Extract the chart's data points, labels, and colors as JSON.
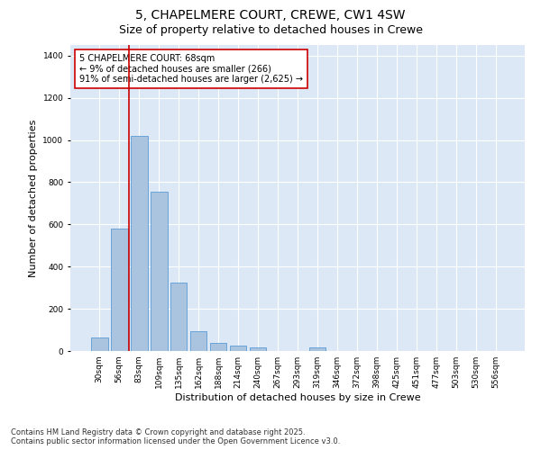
{
  "title_line1": "5, CHAPELMERE COURT, CREWE, CW1 4SW",
  "title_line2": "Size of property relative to detached houses in Crewe",
  "xlabel": "Distribution of detached houses by size in Crewe",
  "ylabel": "Number of detached properties",
  "categories": [
    "30sqm",
    "56sqm",
    "83sqm",
    "109sqm",
    "135sqm",
    "162sqm",
    "188sqm",
    "214sqm",
    "240sqm",
    "267sqm",
    "293sqm",
    "319sqm",
    "346sqm",
    "372sqm",
    "398sqm",
    "425sqm",
    "451sqm",
    "477sqm",
    "503sqm",
    "530sqm",
    "556sqm"
  ],
  "values": [
    65,
    580,
    1020,
    755,
    325,
    95,
    38,
    25,
    15,
    0,
    0,
    18,
    0,
    0,
    0,
    0,
    0,
    0,
    0,
    0,
    0
  ],
  "bar_color": "#aac4e0",
  "bar_edgecolor": "#5b9bd5",
  "vline_color": "#cc0000",
  "vline_x": 1.5,
  "annotation_text": "5 CHAPELMERE COURT: 68sqm\n← 9% of detached houses are smaller (266)\n91% of semi-detached houses are larger (2,625) →",
  "annotation_box_color": "#cc0000",
  "annotation_facecolor": "white",
  "ylim": [
    0,
    1450
  ],
  "yticks": [
    0,
    200,
    400,
    600,
    800,
    1000,
    1200,
    1400
  ],
  "background_color": "#dce8f5",
  "grid_color": "white",
  "footer_line1": "Contains HM Land Registry data © Crown copyright and database right 2025.",
  "footer_line2": "Contains public sector information licensed under the Open Government Licence v3.0.",
  "title_fontsize": 10,
  "subtitle_fontsize": 9,
  "axis_label_fontsize": 8,
  "tick_fontsize": 6.5,
  "annotation_fontsize": 7,
  "footer_fontsize": 6
}
